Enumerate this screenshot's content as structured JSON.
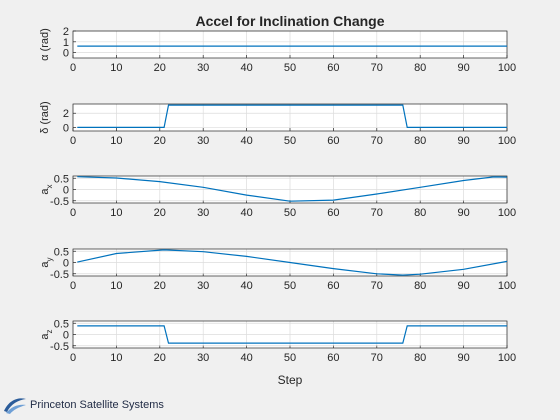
{
  "title": "Accel for Inclination Change",
  "xlabel": "Step",
  "logo_text": "Princeton Satellite Systems",
  "colors": {
    "line": "#0072bd",
    "background": "#f0f0f0",
    "axes": "#ffffff",
    "grid": "#dcdcdc",
    "text": "#262626"
  },
  "chart_data": [
    {
      "type": "line",
      "ylabel": "α (rad)",
      "xlim": [
        0,
        100
      ],
      "ylim": [
        -0.5,
        2
      ],
      "xticks": [
        "0",
        "10",
        "20",
        "30",
        "40",
        "50",
        "60",
        "70",
        "80",
        "90",
        "100"
      ],
      "yticks": [
        "0",
        "1",
        "2"
      ],
      "grid": true,
      "x": [
        1,
        100
      ],
      "values": [
        0.6,
        0.6
      ]
    },
    {
      "type": "line",
      "ylabel": "δ (rad)",
      "xlim": [
        0,
        100
      ],
      "ylim": [
        -0.5,
        3.3
      ],
      "xticks": [
        "0",
        "10",
        "20",
        "30",
        "40",
        "50",
        "60",
        "70",
        "80",
        "90",
        "100"
      ],
      "yticks": [
        "0",
        "2"
      ],
      "grid": true,
      "x": [
        1,
        21,
        22,
        76,
        77,
        100
      ],
      "values": [
        0,
        0,
        3.14,
        3.14,
        0,
        0
      ]
    },
    {
      "type": "line",
      "ylabel": "a",
      "ylabel_sub": "x",
      "xlim": [
        0,
        100
      ],
      "ylim": [
        -0.6,
        0.6
      ],
      "xticks": [
        "0",
        "10",
        "20",
        "30",
        "40",
        "50",
        "60",
        "70",
        "80",
        "90",
        "100"
      ],
      "yticks": [
        "0.5",
        "0",
        "-0.5"
      ],
      "grid": true,
      "x": [
        1,
        10,
        20,
        30,
        40,
        50,
        60,
        70,
        80,
        90,
        97,
        100
      ],
      "values": [
        0.57,
        0.51,
        0.35,
        0.1,
        -0.25,
        -0.52,
        -0.47,
        -0.2,
        0.1,
        0.4,
        0.56,
        0.55
      ]
    },
    {
      "type": "line",
      "ylabel": "a",
      "ylabel_sub": "y",
      "xlim": [
        0,
        100
      ],
      "ylim": [
        -0.6,
        0.6
      ],
      "xticks": [
        "0",
        "10",
        "20",
        "30",
        "40",
        "50",
        "60",
        "70",
        "80",
        "90",
        "100"
      ],
      "yticks": [
        "0.5",
        "0",
        "-0.5"
      ],
      "grid": true,
      "x": [
        1,
        10,
        21,
        30,
        40,
        50,
        60,
        70,
        76,
        80,
        90,
        100
      ],
      "values": [
        0.02,
        0.4,
        0.56,
        0.48,
        0.27,
        0.0,
        -0.27,
        -0.5,
        -0.56,
        -0.52,
        -0.3,
        0.05
      ]
    },
    {
      "type": "line",
      "ylabel": "a",
      "ylabel_sub": "z",
      "xlim": [
        0,
        100
      ],
      "ylim": [
        -0.6,
        0.6
      ],
      "xticks": [
        "0",
        "10",
        "20",
        "30",
        "40",
        "50",
        "60",
        "70",
        "80",
        "90",
        "100"
      ],
      "yticks": [
        "0.5",
        "0",
        "-0.5"
      ],
      "grid": true,
      "x": [
        1,
        21,
        22,
        76,
        77,
        100
      ],
      "values": [
        0.38,
        0.38,
        -0.38,
        -0.38,
        0.38,
        0.38
      ]
    }
  ]
}
